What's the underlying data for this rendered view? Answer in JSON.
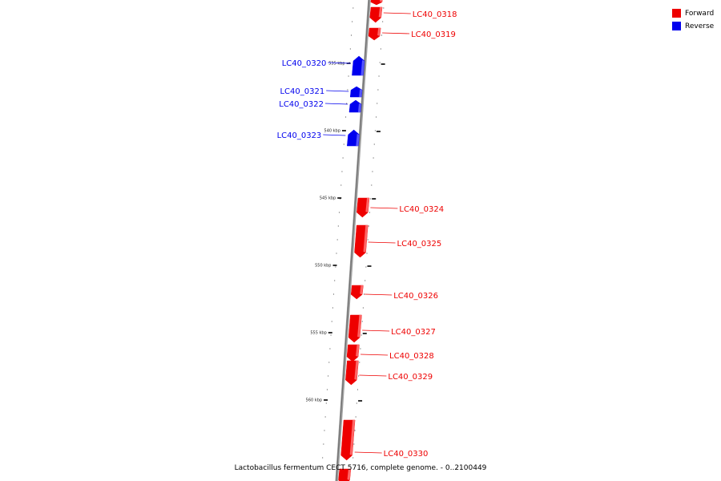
{
  "legend": {
    "forward": {
      "label": "Forward",
      "color": "#ee0000"
    },
    "reverse": {
      "label": "Reverse",
      "color": "#0000ee"
    }
  },
  "caption": "Lactobacillus fermentum CECT 5716, complete genome. - 0..2100449",
  "ticks": [
    {
      "label": "535 kbp"
    },
    {
      "label": "540 kbp"
    },
    {
      "label": "545 kbp"
    },
    {
      "label": "550 kbp"
    },
    {
      "label": "555 kbp"
    },
    {
      "label": "560 kbp"
    }
  ],
  "genes": [
    {
      "label": "",
      "strand": "forward"
    },
    {
      "label": "LC40_0318",
      "strand": "forward"
    },
    {
      "label": "LC40_0319",
      "strand": "forward"
    },
    {
      "label": "LC40_0320",
      "strand": "reverse"
    },
    {
      "label": "LC40_0321",
      "strand": "reverse"
    },
    {
      "label": "LC40_0322",
      "strand": "reverse"
    },
    {
      "label": "LC40_0323",
      "strand": "reverse"
    },
    {
      "label": "LC40_0324",
      "strand": "forward"
    },
    {
      "label": "LC40_0325",
      "strand": "forward"
    },
    {
      "label": "LC40_0326",
      "strand": "forward"
    },
    {
      "label": "LC40_0327",
      "strand": "forward"
    },
    {
      "label": "LC40_0328",
      "strand": "forward"
    },
    {
      "label": "LC40_0329",
      "strand": "forward"
    },
    {
      "label": "LC40_0330",
      "strand": "forward"
    },
    {
      "label": "",
      "strand": "forward"
    }
  ]
}
